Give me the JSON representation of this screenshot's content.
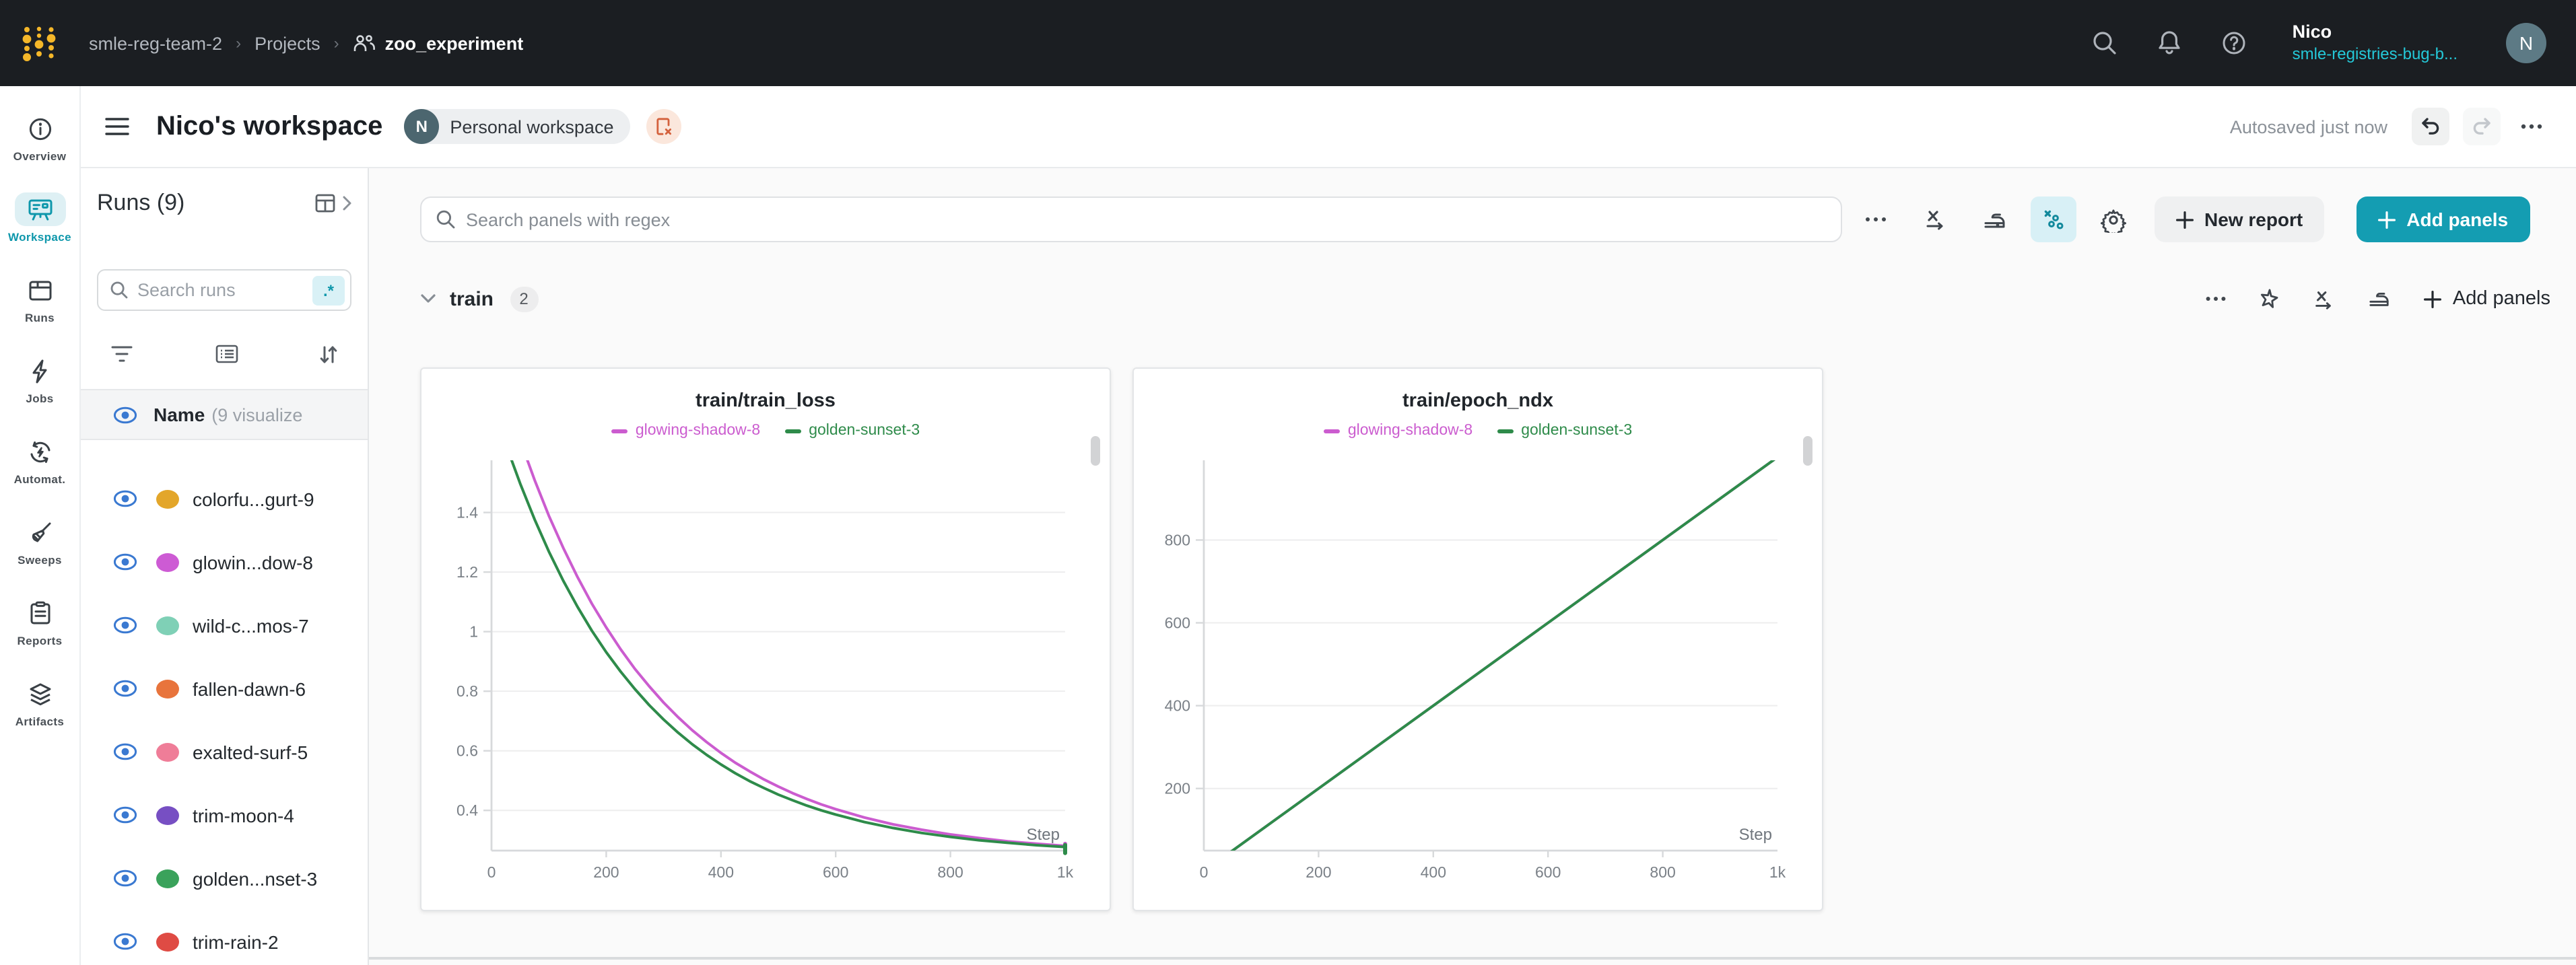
{
  "topbar": {
    "breadcrumbs": [
      "smle-reg-team-2",
      "Projects",
      "zoo_experiment"
    ],
    "user_name": "Nico",
    "user_org": "smle-registries-bug-b...",
    "avatar_initial": "N"
  },
  "workspace_header": {
    "title": "Nico's workspace",
    "badge_initial": "N",
    "badge_label": "Personal workspace",
    "autosave_status": "Autosaved just now"
  },
  "sidebar": {
    "items": [
      {
        "label": "Overview",
        "active": false
      },
      {
        "label": "Workspace",
        "active": true
      },
      {
        "label": "Runs",
        "active": false
      },
      {
        "label": "Jobs",
        "active": false
      },
      {
        "label": "Automat.",
        "active": false
      },
      {
        "label": "Sweeps",
        "active": false
      },
      {
        "label": "Reports",
        "active": false
      },
      {
        "label": "Artifacts",
        "active": false
      }
    ]
  },
  "runs_panel": {
    "title": "Runs (9)",
    "search_placeholder": "Search runs",
    "regex_chip": ".*",
    "name_header": "Name",
    "name_header_sub": "(9 visualize",
    "runs": [
      {
        "name": "colorfu...gurt-9",
        "color": "#e3a62a"
      },
      {
        "name": "glowin...dow-8",
        "color": "#cd5bd4"
      },
      {
        "name": "wild-c...mos-7",
        "color": "#7fd0b6"
      },
      {
        "name": "fallen-dawn-6",
        "color": "#e8743c"
      },
      {
        "name": "exalted-surf-5",
        "color": "#ef7d98"
      },
      {
        "name": "trim-moon-4",
        "color": "#774fc3"
      },
      {
        "name": "golden...nset-3",
        "color": "#3aa25b"
      },
      {
        "name": "trim-rain-2",
        "color": "#df4b44"
      }
    ]
  },
  "panels_toolbar": {
    "search_placeholder": "Search panels with regex",
    "new_report_label": "New report",
    "add_panels_label": "Add panels"
  },
  "section": {
    "name": "train",
    "count": "2",
    "add_panels_label": "Add panels"
  },
  "chart_data": [
    {
      "type": "line",
      "title": "train/train_loss",
      "xlabel": "Step",
      "xlim": [
        0,
        1000
      ],
      "ylim": [
        0.265,
        1.53
      ],
      "grid": "horizontal",
      "legend_position": "top",
      "xticks": [
        {
          "v": 0,
          "label": "0"
        },
        {
          "v": 200,
          "label": "200"
        },
        {
          "v": 400,
          "label": "400"
        },
        {
          "v": 600,
          "label": "600"
        },
        {
          "v": 800,
          "label": "800"
        },
        {
          "v": 1000,
          "label": "1k"
        }
      ],
      "yticks": [
        {
          "v": 0.4,
          "label": "0.4"
        },
        {
          "v": 0.6,
          "label": "0.6"
        },
        {
          "v": 0.8,
          "label": "0.8"
        },
        {
          "v": 1.0,
          "label": "1"
        },
        {
          "v": 1.2,
          "label": "1.2"
        },
        {
          "v": 1.4,
          "label": "1.4"
        }
      ],
      "series": [
        {
          "name": "glowing-shadow-8",
          "color": "#cb5ccf",
          "end_cap": true,
          "x": [
            0,
            25,
            50,
            75,
            100,
            125,
            150,
            175,
            200,
            225,
            250,
            275,
            300,
            325,
            350,
            375,
            400,
            425,
            450,
            475,
            500,
            525,
            550,
            575,
            600,
            650,
            700,
            750,
            800,
            850,
            900,
            950,
            1000
          ],
          "y": [
            1.95,
            1.788,
            1.642,
            1.509,
            1.389,
            1.281,
            1.183,
            1.094,
            1.014,
            0.941,
            0.875,
            0.816,
            0.762,
            0.713,
            0.669,
            0.629,
            0.593,
            0.56,
            0.531,
            0.504,
            0.48,
            0.458,
            0.438,
            0.42,
            0.404,
            0.376,
            0.353,
            0.335,
            0.319,
            0.307,
            0.296,
            0.288,
            0.281
          ]
        },
        {
          "name": "golden-sunset-3",
          "color": "#2e8b4a",
          "end_cap": true,
          "x": [
            0,
            25,
            50,
            75,
            100,
            125,
            150,
            175,
            200,
            225,
            250,
            275,
            300,
            325,
            350,
            375,
            400,
            425,
            450,
            475,
            500,
            525,
            550,
            575,
            600,
            650,
            700,
            750,
            800,
            850,
            900,
            950,
            1000
          ],
          "y": [
            1.775,
            1.629,
            1.497,
            1.377,
            1.269,
            1.171,
            1.083,
            1.003,
            0.931,
            0.866,
            0.807,
            0.753,
            0.705,
            0.661,
            0.622,
            0.586,
            0.554,
            0.525,
            0.498,
            0.475,
            0.453,
            0.434,
            0.416,
            0.4,
            0.386,
            0.361,
            0.341,
            0.324,
            0.311,
            0.3,
            0.291,
            0.283,
            0.277
          ]
        }
      ]
    },
    {
      "type": "line",
      "title": "train/epoch_ndx",
      "xlabel": "Step",
      "xlim": [
        0,
        1000
      ],
      "ylim": [
        50,
        960
      ],
      "grid": "horizontal",
      "legend_position": "top",
      "xticks": [
        {
          "v": 0,
          "label": "0"
        },
        {
          "v": 200,
          "label": "200"
        },
        {
          "v": 400,
          "label": "400"
        },
        {
          "v": 600,
          "label": "600"
        },
        {
          "v": 800,
          "label": "800"
        },
        {
          "v": 1000,
          "label": "1k"
        }
      ],
      "yticks": [
        {
          "v": 200,
          "label": "200"
        },
        {
          "v": 400,
          "label": "400"
        },
        {
          "v": 600,
          "label": "600"
        },
        {
          "v": 800,
          "label": "800"
        }
      ],
      "series": [
        {
          "name": "glowing-shadow-8",
          "color": "#cb5ccf",
          "end_cap": false,
          "x": [
            0,
            1000
          ],
          "y": [
            0,
            1000
          ]
        },
        {
          "name": "golden-sunset-3",
          "color": "#2e8b4a",
          "end_cap": false,
          "x": [
            0,
            1000
          ],
          "y": [
            0,
            1000
          ]
        }
      ]
    }
  ]
}
